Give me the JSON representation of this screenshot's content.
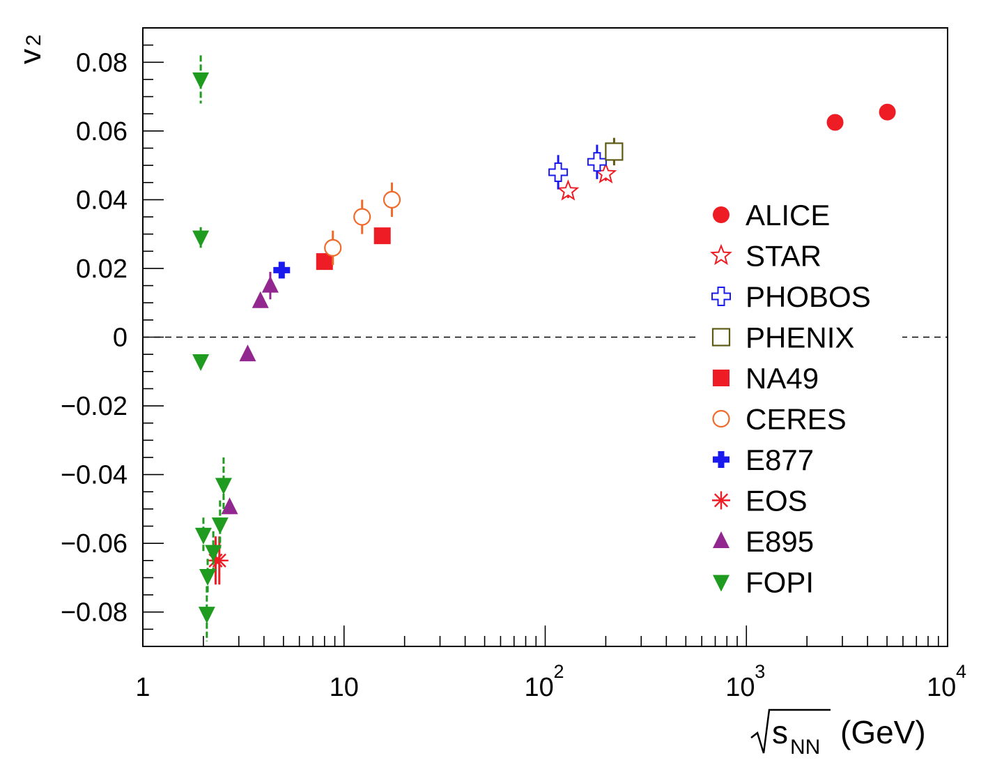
{
  "chart_data": {
    "type": "scatter",
    "xscale": "log",
    "xlim": [
      1,
      10000
    ],
    "ylim": [
      -0.09,
      0.09
    ],
    "xlabel": "√s_NN (GeV)",
    "ylabel": "v2",
    "ylabel_main": "v",
    "ylabel_sub": "2",
    "xlabel_main": "s",
    "xlabel_sub": "NN",
    "xlabel_unit": "(GeV)",
    "x_tick_labels": [
      {
        "value": 1,
        "base": "1",
        "exp": ""
      },
      {
        "value": 10,
        "base": "10",
        "exp": ""
      },
      {
        "value": 100,
        "base": "10",
        "exp": "2"
      },
      {
        "value": 1000,
        "base": "10",
        "exp": "3"
      },
      {
        "value": 10000,
        "base": "10",
        "exp": "4"
      }
    ],
    "y_ticks": [
      -0.08,
      -0.06,
      -0.04,
      -0.02,
      0,
      0.02,
      0.04,
      0.06,
      0.08
    ],
    "y_tick_labels": [
      "−0.08",
      "−0.06",
      "−0.04",
      "−0.02",
      "0",
      "0.02",
      "0.04",
      "0.06",
      "0.08"
    ],
    "zero_line": "dashed",
    "legend_position": "right",
    "series": [
      {
        "name": "ALICE",
        "marker": "circle-filled",
        "color": "#ee1c25",
        "points": [
          {
            "x": 2760,
            "y": 0.0625,
            "err": 0
          },
          {
            "x": 5020,
            "y": 0.0655,
            "err": 0
          }
        ]
      },
      {
        "name": "STAR",
        "marker": "star-open",
        "color": "#ee1c25",
        "points": [
          {
            "x": 130,
            "y": 0.0425,
            "err": 0.002
          },
          {
            "x": 200,
            "y": 0.0475,
            "err": 0.002
          }
        ]
      },
      {
        "name": "PHOBOS",
        "marker": "cross-open",
        "color": "#1a1aee",
        "points": [
          {
            "x": 116,
            "y": 0.048,
            "err": 0.005
          },
          {
            "x": 181,
            "y": 0.051,
            "err": 0.005
          }
        ]
      },
      {
        "name": "PHENIX",
        "marker": "square-open",
        "color": "#5c5a14",
        "points": [
          {
            "x": 220,
            "y": 0.054,
            "err": 0.004
          }
        ]
      },
      {
        "name": "NA49",
        "marker": "square-filled",
        "color": "#ee1c25",
        "points": [
          {
            "x": 8.0,
            "y": 0.022,
            "err": 0.001
          },
          {
            "x": 15.5,
            "y": 0.0295,
            "err": 0.001
          }
        ]
      },
      {
        "name": "CERES",
        "marker": "circle-open",
        "color": "#f06a2a",
        "points": [
          {
            "x": 8.8,
            "y": 0.026,
            "err": 0.005
          },
          {
            "x": 12.3,
            "y": 0.035,
            "err": 0.005
          },
          {
            "x": 17.3,
            "y": 0.04,
            "err": 0.005
          }
        ]
      },
      {
        "name": "E877",
        "marker": "cross-filled",
        "color": "#1a1aee",
        "points": [
          {
            "x": 4.9,
            "y": 0.0195,
            "err": 0.002
          }
        ]
      },
      {
        "name": "EOS",
        "marker": "asterisk",
        "color": "#ee1c25",
        "points": [
          {
            "x": 2.3,
            "y": -0.065,
            "err": 0.007
          },
          {
            "x": 2.4,
            "y": -0.065,
            "err": 0.007
          }
        ]
      },
      {
        "name": "E895",
        "marker": "triangle-up-filled",
        "color": "#92278f",
        "points": [
          {
            "x": 2.7,
            "y": -0.0495,
            "err": 0.002
          },
          {
            "x": 3.32,
            "y": -0.005,
            "err": 0.002
          },
          {
            "x": 3.84,
            "y": 0.0105,
            "err": 0.002
          },
          {
            "x": 4.3,
            "y": 0.015,
            "err": 0.004
          }
        ]
      },
      {
        "name": "FOPI",
        "marker": "triangle-down-filled",
        "color": "#1f9b1f",
        "points": [
          {
            "x": 1.94,
            "y": 0.075,
            "err": 0.007
          },
          {
            "x": 1.94,
            "y": 0.029,
            "err": 0.003
          },
          {
            "x": 1.94,
            "y": -0.007,
            "err": 0.002
          },
          {
            "x": 2.0,
            "y": -0.0575,
            "err": 0.005
          },
          {
            "x": 2.1,
            "y": -0.0695,
            "err": 0.005
          },
          {
            "x": 2.08,
            "y": -0.0805,
            "err": 0.008
          },
          {
            "x": 2.24,
            "y": -0.0625,
            "err": 0.006
          },
          {
            "x": 2.42,
            "y": -0.0545,
            "err": 0.007
          },
          {
            "x": 2.52,
            "y": -0.043,
            "err": 0.008
          }
        ]
      }
    ]
  }
}
